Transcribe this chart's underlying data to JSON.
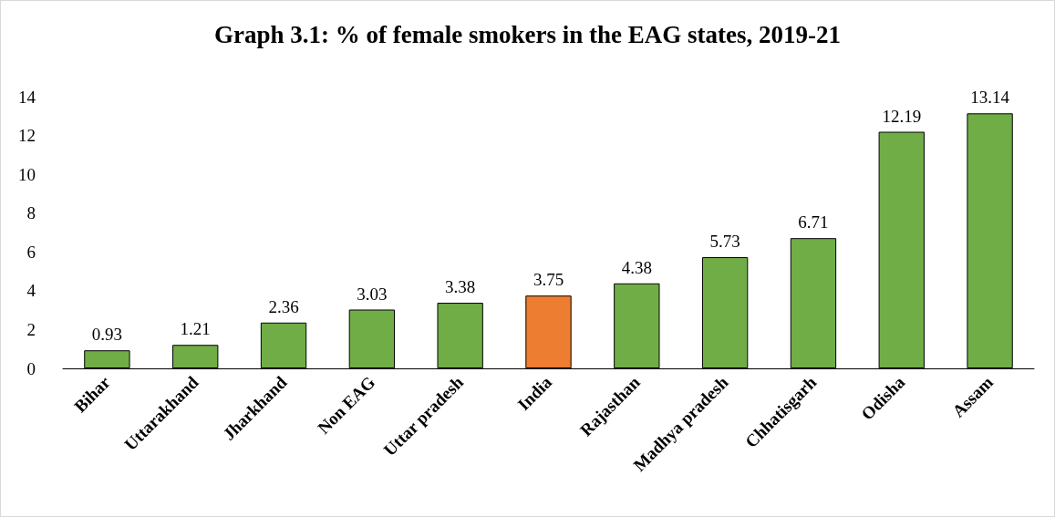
{
  "chart_data": {
    "type": "bar",
    "title": "Graph 3.1: % of female smokers in the EAG states, 2019-21",
    "categories": [
      "Bihar",
      "Uttarakhand",
      "Jharkhand",
      "Non EAG",
      "Uttar pradesh",
      "India",
      "Rajasthan",
      "Madhya pradesh",
      "Chhatisgarh",
      "Odisha",
      "Assam"
    ],
    "values": [
      0.93,
      1.21,
      2.36,
      3.03,
      3.38,
      3.75,
      4.38,
      5.73,
      6.71,
      12.19,
      13.14
    ],
    "colors": [
      "#70ad47",
      "#70ad47",
      "#70ad47",
      "#70ad47",
      "#70ad47",
      "#ed7d31",
      "#70ad47",
      "#70ad47",
      "#70ad47",
      "#70ad47",
      "#70ad47"
    ],
    "ylim": [
      0,
      14
    ],
    "yticks": [
      0,
      2,
      4,
      6,
      8,
      10,
      12,
      14
    ],
    "grid": false,
    "data_labels": true
  }
}
